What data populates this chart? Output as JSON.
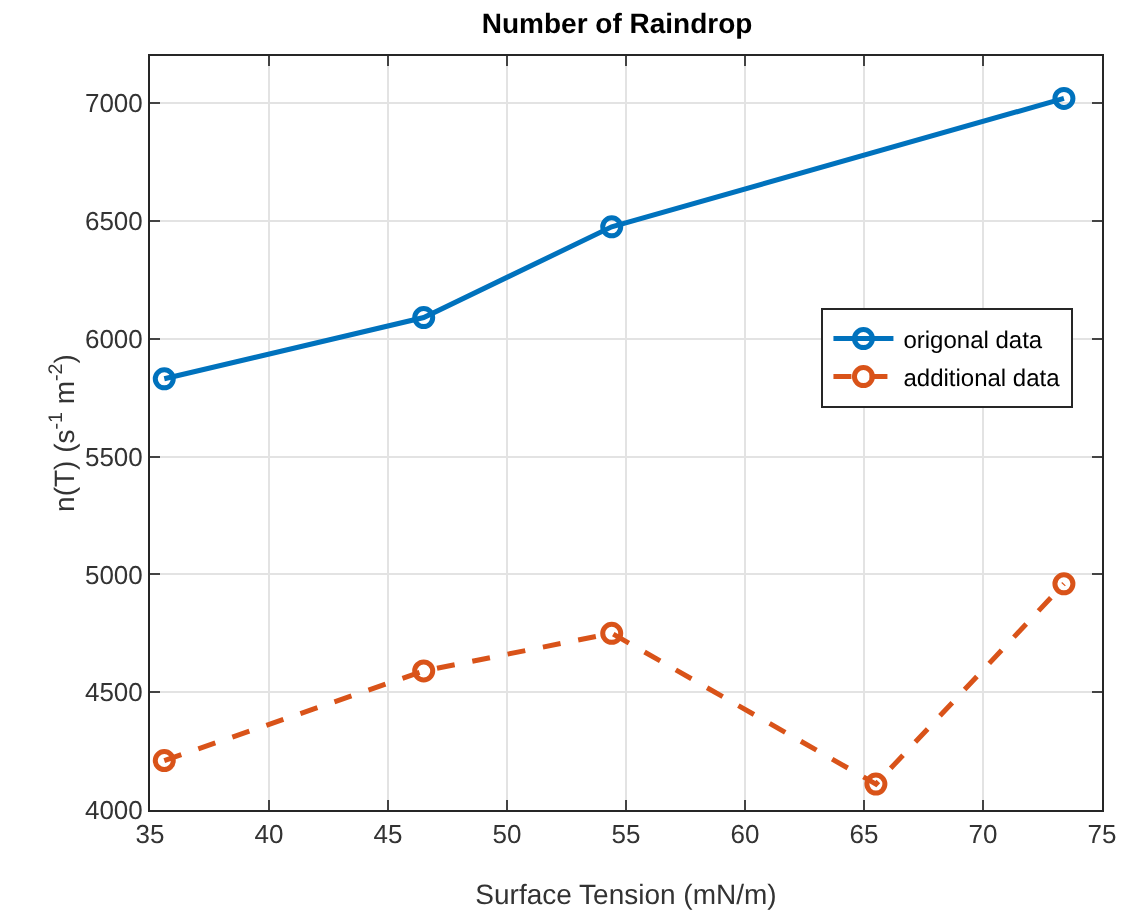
{
  "chart_data": {
    "type": "line",
    "title": "Number of Raindrop",
    "xlabel": "Surface Tension (mN/m)",
    "ylabel": "n(T) (s$^{-1}$ m$^{-2}$)",
    "series": [
      {
        "name": "origonal data",
        "color": "#0072bd",
        "x": [
          35.6,
          46.5,
          54.4,
          73.4
        ],
        "values": [
          5830,
          6090,
          6475,
          7020
        ],
        "line_style": "solid"
      },
      {
        "name": "additional data",
        "color": "#d95319",
        "x": [
          35.6,
          46.5,
          54.4,
          65.5,
          73.4
        ],
        "values": [
          4210,
          4590,
          4750,
          4110,
          4960
        ],
        "line_style": "dashed"
      }
    ],
    "xlim": [
      35,
      75
    ],
    "xticks": [
      35,
      40,
      45,
      50,
      55,
      60,
      65,
      70,
      75
    ],
    "ylim": [
      4000,
      7200
    ],
    "yticks": [
      4000,
      4500,
      5000,
      5500,
      6000,
      6500,
      7000
    ],
    "grid": true,
    "legend": "right",
    "marker": "circle"
  }
}
